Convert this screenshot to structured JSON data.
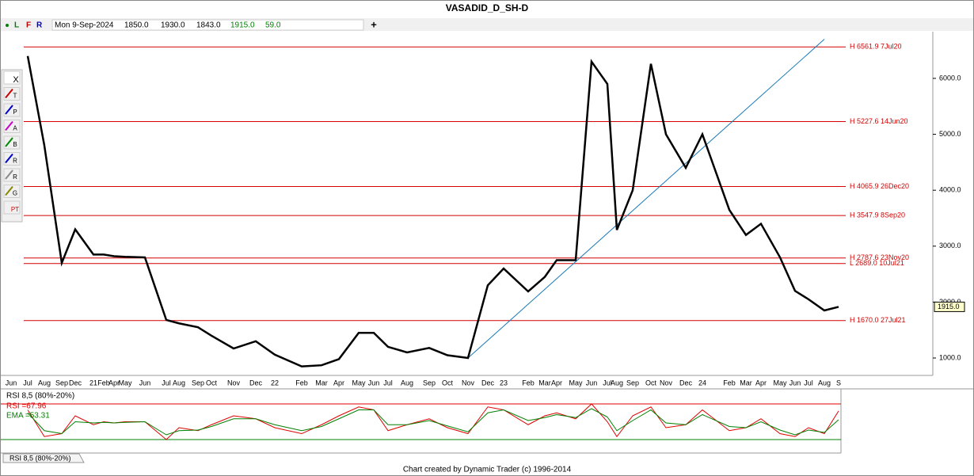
{
  "title": "VASADID_D_SH-D",
  "header": {
    "mode_letters": [
      "L",
      "F",
      "R"
    ],
    "date": "Mon 9-Sep-2024",
    "open": "1850.0",
    "high": "1930.0",
    "low": "1843.0",
    "close": "1915.0",
    "change": "59.0",
    "add_button": "+"
  },
  "toolbar": [
    "X",
    "T",
    "P",
    "A",
    "B",
    "R",
    "R",
    "G",
    "PT"
  ],
  "chart_data": [
    {
      "type": "line",
      "categories": [
        "Jun",
        "Jul",
        "Aug",
        "Sep",
        "Dec",
        "21",
        "Feb",
        "Apr",
        "May",
        "Jun",
        "Jul",
        "Aug",
        "Sep",
        "Oct",
        "Nov",
        "Dec",
        "22",
        "Feb",
        "Mar",
        "Apr",
        "May",
        "Jun",
        "Jul",
        "Aug",
        "Sep",
        "Oct",
        "Nov",
        "Dec",
        "23",
        "Feb",
        "Mar",
        "Apr",
        "May",
        "Jun",
        "Jul",
        "Aug",
        "Sep",
        "Oct",
        "Nov",
        "Dec",
        "24",
        "Feb",
        "Mar",
        "Apr",
        "May",
        "Jun",
        "Jul",
        "Aug",
        "S"
      ],
      "series": [
        {
          "color": "#000000",
          "values": [
            null,
            6400,
            4800,
            2700,
            3300,
            2850,
            2850,
            2820,
            2810,
            2800,
            1680,
            1620,
            1550,
            1400,
            1170,
            1300,
            1060,
            850,
            870,
            980,
            1450,
            1450,
            1200,
            1100,
            1180,
            1050,
            1000,
            2300,
            2600,
            2190,
            2450,
            2750,
            2750,
            6300,
            5900,
            3290,
            4000,
            6260,
            5000,
            4400,
            5000,
            3650,
            3200,
            3400,
            2800,
            2200,
            2050,
            1850,
            1915
          ]
        }
      ],
      "ylim": [
        717,
        6835
      ],
      "yticks": [
        {
          "value": 1000,
          "label": "1000.0"
        },
        {
          "value": 2000,
          "label": "2000.0"
        },
        {
          "value": 3000,
          "label": "3000.0"
        },
        {
          "value": 4000,
          "label": "4000.0"
        },
        {
          "value": 5000,
          "label": "5000.0"
        },
        {
          "value": 6000,
          "label": "6000.0"
        }
      ],
      "levels": [
        {
          "value": 6561.9,
          "label": "H 6561.9 7Jul20"
        },
        {
          "value": 5227.6,
          "label": "H 5227.6 14Jun20"
        },
        {
          "value": 4065.9,
          "label": "H 4065.9 26Dec20"
        },
        {
          "value": 3547.9,
          "label": "H 3547.9 8Sep20"
        },
        {
          "value": 2787.6,
          "label": "H 2787.6 23Nov20"
        },
        {
          "value": 2689.0,
          "label": "L 2689.0 10Jul21"
        },
        {
          "value": 1670.0,
          "label": "H 1670.0 27Jul21"
        }
      ],
      "level_color": "#d40000",
      "trendline": {
        "color": "#1a7ab8",
        "values": [
          1000,
          6700
        ]
      },
      "last_price": {
        "value": 1915,
        "label": "1915.0"
      }
    },
    {
      "type": "line",
      "title": "RSI 8,5 (80%-20%)",
      "legend": [
        "RSI =67.96",
        "EMA =53.31"
      ],
      "series": [
        {
          "color": "#e00000",
          "values": [
            null,
            70,
            25,
            30,
            60,
            45,
            50,
            48,
            50,
            50,
            20,
            40,
            35,
            45,
            60,
            55,
            40,
            30,
            45,
            60,
            75,
            70,
            35,
            45,
            55,
            40,
            30,
            75,
            70,
            45,
            60,
            65,
            55,
            80,
            50,
            25,
            60,
            75,
            40,
            45,
            70,
            35,
            40,
            55,
            30,
            25,
            40,
            30,
            67.96
          ]
        },
        {
          "color": "#008000",
          "values": [
            null,
            65,
            35,
            30,
            50,
            48,
            49,
            48,
            49,
            50,
            28,
            35,
            36,
            42,
            55,
            55,
            45,
            35,
            42,
            55,
            70,
            70,
            45,
            45,
            52,
            43,
            33,
            65,
            70,
            52,
            57,
            62,
            57,
            72,
            58,
            35,
            52,
            70,
            48,
            45,
            62,
            42,
            40,
            50,
            36,
            28,
            36,
            32,
            53.31
          ]
        }
      ],
      "ylim": [
        0,
        100
      ],
      "bands": [
        {
          "value": 80,
          "color": "#e00000"
        },
        {
          "value": 20,
          "color": "#008000"
        }
      ],
      "tab": "RSI 8,5 (80%-20%)"
    }
  ],
  "footer": "Chart created by Dynamic Trader  (c) 1996-2014"
}
